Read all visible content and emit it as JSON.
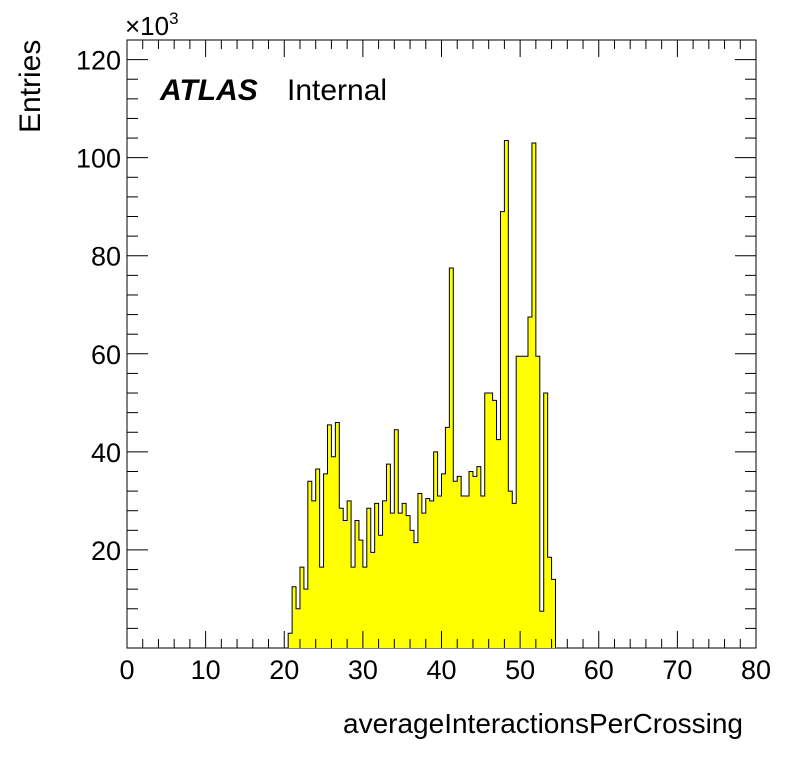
{
  "chart_data": {
    "type": "histogram",
    "xlabel": "averageInteractionsPerCrossing",
    "ylabel": "Entries",
    "y_multiplier": "×10",
    "y_multiplier_exponent": "3",
    "xlim": [
      0,
      80
    ],
    "ylim": [
      0,
      124
    ],
    "x_ticks": [
      "0",
      "10",
      "20",
      "30",
      "40",
      "50",
      "60",
      "70",
      "80"
    ],
    "x_tick_values": [
      0,
      10,
      20,
      30,
      40,
      50,
      60,
      70,
      80
    ],
    "y_ticks": [
      "20",
      "40",
      "60",
      "80",
      "100",
      "120"
    ],
    "y_tick_values": [
      20,
      40,
      60,
      80,
      100,
      120
    ],
    "bin_width": 0.5,
    "bin_start": 20.5,
    "values": [
      3,
      12.5,
      8,
      16.5,
      12,
      34,
      30,
      36.5,
      16.5,
      35.5,
      45.5,
      39,
      46,
      28.5,
      26,
      30,
      16.5,
      26,
      22,
      16.5,
      28.5,
      19.5,
      29.5,
      23,
      30,
      37.5,
      27.5,
      44.5,
      27.5,
      29.5,
      27,
      24,
      21.5,
      31.5,
      27.5,
      30.5,
      30,
      40,
      31,
      35.5,
      45,
      77.5,
      34,
      35,
      31,
      31,
      36,
      35,
      37,
      31,
      52,
      52,
      50.5,
      42.5,
      89,
      103.5,
      32,
      29.5,
      59.5,
      59.5,
      59.5,
      67.5,
      103,
      59.5,
      7.5,
      52,
      18.5,
      14
    ],
    "fill_color": "#ffff00",
    "line_color": "#000000",
    "annotation": {
      "bold_text": "ATLAS",
      "text": "Internal"
    }
  }
}
